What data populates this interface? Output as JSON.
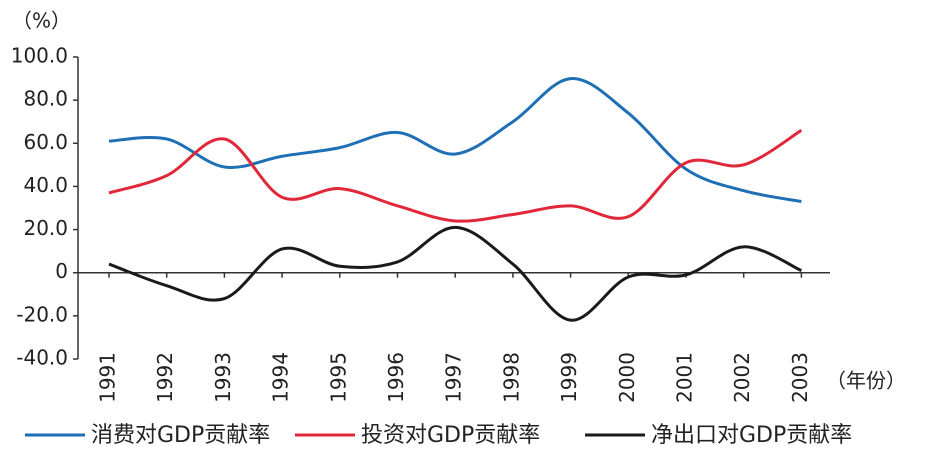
{
  "chart_data": {
    "type": "line",
    "y_axis_label": "（%）",
    "x_axis_label": "（年份）",
    "categories": [
      "1991",
      "1992",
      "1993",
      "1994",
      "1995",
      "1996",
      "1997",
      "1998",
      "1999",
      "2000",
      "2001",
      "2002",
      "2003"
    ],
    "series": [
      {
        "name": "消费对GDP贡献率",
        "color": "#1f6fb5",
        "values": [
          61,
          62,
          49,
          54,
          58,
          65,
          55,
          70,
          90,
          74,
          48,
          38,
          33
        ]
      },
      {
        "name": "投资对GDP贡献率",
        "color": "#e0283a",
        "values": [
          37,
          45,
          62,
          35,
          39,
          31,
          24,
          27,
          31,
          26,
          51,
          50,
          66
        ]
      },
      {
        "name": "净出口对GDP贡献率",
        "color": "#1a1a1a",
        "values": [
          4,
          -6,
          -12,
          11,
          3,
          5,
          21,
          4,
          -22,
          -2,
          -1,
          12,
          1
        ]
      }
    ],
    "ylim": [
      -40,
      100
    ],
    "yticks": [
      {
        "value": 100,
        "label": "100.0"
      },
      {
        "value": 80,
        "label": "80.0"
      },
      {
        "value": 60,
        "label": "60.0"
      },
      {
        "value": 40,
        "label": "40.0"
      },
      {
        "value": 20,
        "label": "20.0"
      },
      0,
      {
        "value": -20,
        "label": "-20.0"
      },
      {
        "value": -40,
        "label": "-40.0"
      }
    ],
    "legend": "bottom"
  }
}
